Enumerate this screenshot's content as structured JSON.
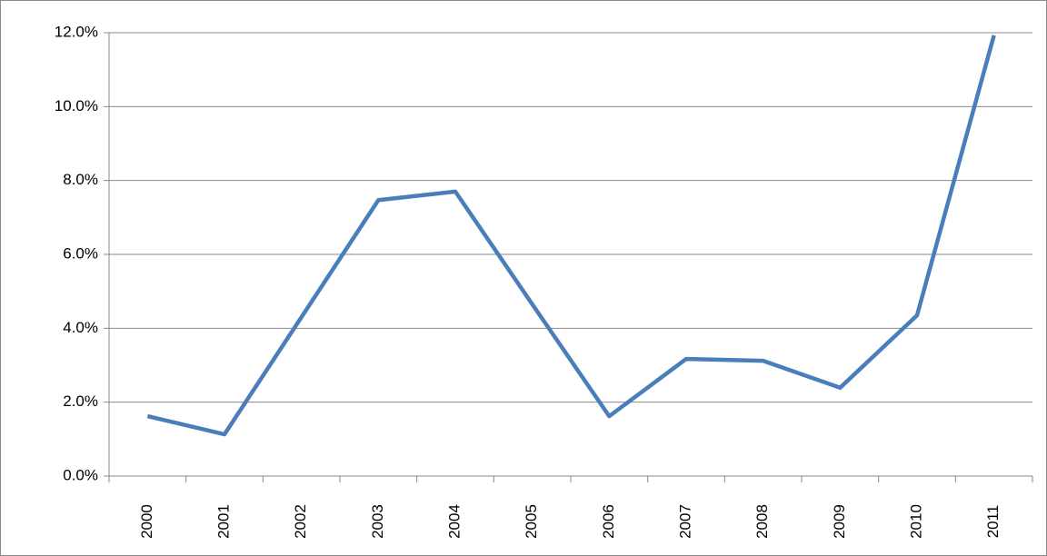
{
  "chart_data": {
    "type": "line",
    "categories": [
      "2000",
      "2001",
      "2002",
      "2003",
      "2004",
      "2005",
      "2006",
      "2007",
      "2008",
      "2009",
      "2010",
      "2011"
    ],
    "values": [
      1.62,
      1.13,
      4.3,
      7.47,
      7.7,
      4.65,
      1.62,
      3.17,
      3.12,
      2.39,
      4.35,
      11.93
    ],
    "color": "#4a7ebb",
    "ylim": [
      0,
      12
    ],
    "yticks": [
      {
        "value": 0,
        "label": "0.0%"
      },
      {
        "value": 2,
        "label": "2.0%"
      },
      {
        "value": 4,
        "label": "4.0%"
      },
      {
        "value": 6,
        "label": "6.0%"
      },
      {
        "value": 8,
        "label": "8.0%"
      },
      {
        "value": 10,
        "label": "10.0%"
      },
      {
        "value": 12,
        "label": "12.0%"
      }
    ],
    "grid": true
  }
}
